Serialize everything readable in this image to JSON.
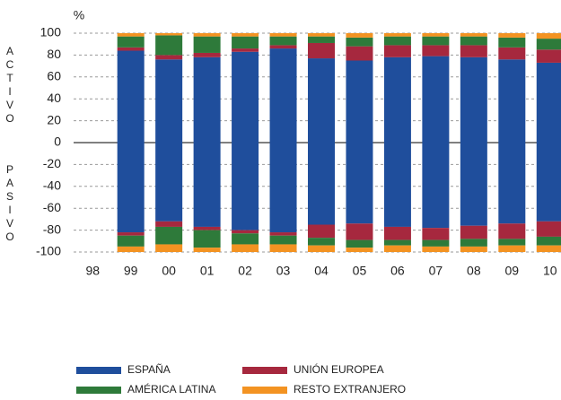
{
  "chart_data": {
    "type": "bar",
    "stacked": true,
    "y_label": "%",
    "positive_label": "ACTIVO",
    "negative_label": "PASIVO",
    "categories": [
      "98",
      "99",
      "00",
      "01",
      "02",
      "03",
      "04",
      "05",
      "06",
      "07",
      "08",
      "09",
      "10"
    ],
    "series": [
      {
        "name": "ESPAÑA",
        "color": "#1f4e9c",
        "values": [
          null,
          84,
          76,
          78,
          83,
          86,
          77,
          75,
          78,
          79,
          78,
          76,
          73
        ],
        "negative_values": [
          null,
          -82,
          -72,
          -77,
          -80,
          -82,
          -75,
          -74,
          -77,
          -78,
          -76,
          -74,
          -72
        ]
      },
      {
        "name": "UNIÓN EUROPEA",
        "color": "#a6283e",
        "values": [
          null,
          3,
          4,
          4,
          3,
          3,
          14,
          13,
          11,
          10,
          11,
          11,
          12
        ],
        "negative_values": [
          null,
          -3,
          -5,
          -3,
          -3,
          -3,
          -12,
          -15,
          -12,
          -11,
          -12,
          -14,
          -14
        ]
      },
      {
        "name": "AMÉRICA LATINA",
        "color": "#2e7a3a",
        "values": [
          null,
          10,
          18,
          15,
          11,
          8,
          6,
          8,
          8,
          8,
          8,
          9,
          10
        ],
        "negative_values": [
          null,
          -10,
          -16,
          -16,
          -10,
          -8,
          -7,
          -7,
          -5,
          -6,
          -7,
          -6,
          -8
        ]
      },
      {
        "name": "RESTO EXTRANJERO",
        "color": "#f39322",
        "values": [
          null,
          3,
          2,
          3,
          3,
          3,
          3,
          4,
          3,
          3,
          3,
          4,
          5
        ],
        "negative_values": [
          null,
          -5,
          -7,
          -4,
          -7,
          -7,
          -6,
          -4,
          -6,
          -5,
          -5,
          -6,
          -6
        ]
      }
    ],
    "ylim": [
      -100,
      100
    ],
    "yticks": [
      100,
      80,
      60,
      40,
      20,
      0,
      -20,
      -40,
      -60,
      -80,
      -100
    ],
    "grid": true
  }
}
